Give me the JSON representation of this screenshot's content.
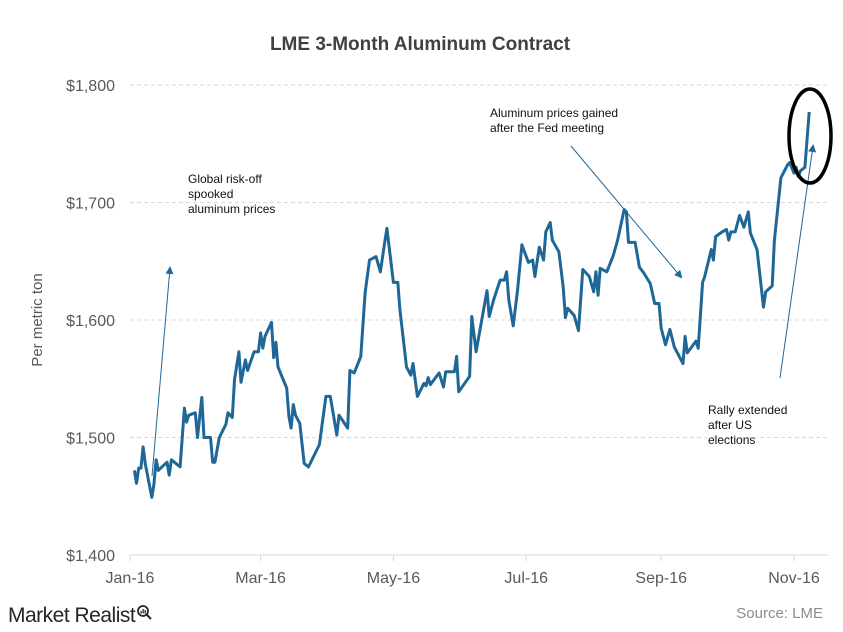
{
  "chart_data": {
    "type": "line",
    "title": "LME 3-Month Aluminum Contract",
    "ylabel": "Per metric ton",
    "xlabel": "",
    "ylim": [
      1400,
      1800
    ],
    "yticks": [
      1400,
      1500,
      1600,
      1700,
      1800
    ],
    "ytick_labels": [
      "$1,400",
      "$1,500",
      "$1,600",
      "$1,700",
      "$1,800"
    ],
    "xtick_dates": [
      "2016-01-01",
      "2016-03-01",
      "2016-05-01",
      "2016-07-01",
      "2016-09-01",
      "2016-11-01"
    ],
    "xtick_labels": [
      "Jan-16",
      "Mar-16",
      "May-16",
      "Jul-16",
      "Sep-16",
      "Nov-16"
    ],
    "grid": "horizontal dashed",
    "line_color": "#1f6796",
    "series": [
      {
        "points": [
          [
            "2016-01-03",
            1472
          ],
          [
            "2016-01-04",
            1461
          ],
          [
            "2016-01-05",
            1474
          ],
          [
            "2016-01-06",
            1474
          ],
          [
            "2016-01-07",
            1492
          ],
          [
            "2016-01-08",
            1478
          ],
          [
            "2016-01-11",
            1449
          ],
          [
            "2016-01-12",
            1460
          ],
          [
            "2016-01-13",
            1481
          ],
          [
            "2016-01-14",
            1472
          ],
          [
            "2016-01-18",
            1479
          ],
          [
            "2016-01-19",
            1468
          ],
          [
            "2016-01-20",
            1481
          ],
          [
            "2016-01-24",
            1475
          ],
          [
            "2016-01-26",
            1525
          ],
          [
            "2016-01-27",
            1513
          ],
          [
            "2016-01-28",
            1519
          ],
          [
            "2016-01-31",
            1521
          ],
          [
            "2016-02-01",
            1500
          ],
          [
            "2016-02-03",
            1534
          ],
          [
            "2016-02-04",
            1500
          ],
          [
            "2016-02-07",
            1500
          ],
          [
            "2016-02-08",
            1479
          ],
          [
            "2016-02-09",
            1479
          ],
          [
            "2016-02-11",
            1500
          ],
          [
            "2016-02-14",
            1511
          ],
          [
            "2016-02-15",
            1521
          ],
          [
            "2016-02-17",
            1517
          ],
          [
            "2016-02-18",
            1549
          ],
          [
            "2016-02-20",
            1573
          ],
          [
            "2016-02-21",
            1547
          ],
          [
            "2016-02-23",
            1566
          ],
          [
            "2016-02-24",
            1557
          ],
          [
            "2016-02-27",
            1573
          ],
          [
            "2016-02-29",
            1573
          ],
          [
            "2016-03-01",
            1589
          ],
          [
            "2016-03-02",
            1576
          ],
          [
            "2016-03-03",
            1586
          ],
          [
            "2016-03-06",
            1598
          ],
          [
            "2016-03-07",
            1568
          ],
          [
            "2016-03-08",
            1581
          ],
          [
            "2016-03-09",
            1560
          ],
          [
            "2016-03-13",
            1542
          ],
          [
            "2016-03-14",
            1518
          ],
          [
            "2016-03-15",
            1508
          ],
          [
            "2016-03-16",
            1528
          ],
          [
            "2016-03-17",
            1519
          ],
          [
            "2016-03-19",
            1512
          ],
          [
            "2016-03-21",
            1478
          ],
          [
            "2016-03-23",
            1475
          ],
          [
            "2016-03-28",
            1494
          ],
          [
            "2016-03-31",
            1535
          ],
          [
            "2016-04-02",
            1535
          ],
          [
            "2016-04-05",
            1502
          ],
          [
            "2016-04-06",
            1519
          ],
          [
            "2016-04-10",
            1508
          ],
          [
            "2016-04-11",
            1557
          ],
          [
            "2016-04-13",
            1555
          ],
          [
            "2016-04-16",
            1569
          ],
          [
            "2016-04-18",
            1623
          ],
          [
            "2016-04-20",
            1651
          ],
          [
            "2016-04-23",
            1654
          ],
          [
            "2016-04-25",
            1641
          ],
          [
            "2016-04-27",
            1666
          ],
          [
            "2016-04-28",
            1678
          ],
          [
            "2016-05-01",
            1632
          ],
          [
            "2016-05-03",
            1632
          ],
          [
            "2016-05-04",
            1609
          ],
          [
            "2016-05-07",
            1560
          ],
          [
            "2016-05-09",
            1553
          ],
          [
            "2016-05-10",
            1563
          ],
          [
            "2016-05-12",
            1535
          ],
          [
            "2016-05-15",
            1546
          ],
          [
            "2016-05-16",
            1544
          ],
          [
            "2016-05-17",
            1551
          ],
          [
            "2016-05-18",
            1545
          ],
          [
            "2016-05-22",
            1555
          ],
          [
            "2016-05-24",
            1543
          ],
          [
            "2016-05-25",
            1556
          ],
          [
            "2016-05-29",
            1556
          ],
          [
            "2016-05-30",
            1569
          ],
          [
            "2016-05-31",
            1539
          ],
          [
            "2016-06-05",
            1552
          ],
          [
            "2016-06-06",
            1603
          ],
          [
            "2016-06-08",
            1573
          ],
          [
            "2016-06-13",
            1625
          ],
          [
            "2016-06-14",
            1603
          ],
          [
            "2016-06-16",
            1617
          ],
          [
            "2016-06-19",
            1634
          ],
          [
            "2016-06-21",
            1634
          ],
          [
            "2016-06-22",
            1641
          ],
          [
            "2016-06-23",
            1617
          ],
          [
            "2016-06-25",
            1595
          ],
          [
            "2016-06-27",
            1625
          ],
          [
            "2016-06-29",
            1664
          ],
          [
            "2016-07-02",
            1649
          ],
          [
            "2016-07-04",
            1651
          ],
          [
            "2016-07-05",
            1637
          ],
          [
            "2016-07-07",
            1662
          ],
          [
            "2016-07-09",
            1651
          ],
          [
            "2016-07-10",
            1675
          ],
          [
            "2016-07-12",
            1683
          ],
          [
            "2016-07-13",
            1668
          ],
          [
            "2016-07-16",
            1658
          ],
          [
            "2016-07-18",
            1628
          ],
          [
            "2016-07-19",
            1602
          ],
          [
            "2016-07-20",
            1610
          ],
          [
            "2016-07-23",
            1604
          ],
          [
            "2016-07-25",
            1591
          ],
          [
            "2016-07-27",
            1643
          ],
          [
            "2016-07-30",
            1637
          ],
          [
            "2016-08-01",
            1624
          ],
          [
            "2016-08-02",
            1641
          ],
          [
            "2016-08-03",
            1621
          ],
          [
            "2016-08-04",
            1644
          ],
          [
            "2016-08-07",
            1641
          ],
          [
            "2016-08-10",
            1655
          ],
          [
            "2016-08-12",
            1668
          ],
          [
            "2016-08-15",
            1694
          ],
          [
            "2016-08-16",
            1692
          ],
          [
            "2016-08-17",
            1666
          ],
          [
            "2016-08-20",
            1666
          ],
          [
            "2016-08-22",
            1645
          ],
          [
            "2016-08-24",
            1640
          ],
          [
            "2016-08-27",
            1631
          ],
          [
            "2016-08-29",
            1614
          ],
          [
            "2016-08-31",
            1614
          ],
          [
            "2016-09-01",
            1593
          ],
          [
            "2016-09-03",
            1579
          ],
          [
            "2016-09-05",
            1592
          ],
          [
            "2016-09-07",
            1577
          ],
          [
            "2016-09-11",
            1563
          ],
          [
            "2016-09-12",
            1586
          ],
          [
            "2016-09-13",
            1572
          ],
          [
            "2016-09-17",
            1582
          ],
          [
            "2016-09-18",
            1576
          ],
          [
            "2016-09-20",
            1632
          ],
          [
            "2016-09-21",
            1637
          ],
          [
            "2016-09-24",
            1660
          ],
          [
            "2016-09-25",
            1651
          ],
          [
            "2016-09-26",
            1671
          ],
          [
            "2016-09-29",
            1675
          ],
          [
            "2016-10-01",
            1677
          ],
          [
            "2016-10-02",
            1668
          ],
          [
            "2016-10-03",
            1675
          ],
          [
            "2016-10-05",
            1675
          ],
          [
            "2016-10-07",
            1689
          ],
          [
            "2016-10-09",
            1679
          ],
          [
            "2016-10-11",
            1692
          ],
          [
            "2016-10-12",
            1674
          ],
          [
            "2016-10-15",
            1660
          ],
          [
            "2016-10-18",
            1611
          ],
          [
            "2016-10-19",
            1624
          ],
          [
            "2016-10-22",
            1629
          ],
          [
            "2016-10-23",
            1668
          ],
          [
            "2016-10-26",
            1721
          ],
          [
            "2016-10-29",
            1732
          ],
          [
            "2016-10-30",
            1734
          ],
          [
            "2016-11-01",
            1725
          ],
          [
            "2016-11-02",
            1730
          ],
          [
            "2016-11-03",
            1722
          ],
          [
            "2016-11-04",
            1727
          ],
          [
            "2016-11-06",
            1730
          ],
          [
            "2016-11-08",
            1777
          ]
        ]
      }
    ],
    "annotations": [
      {
        "lines": [
          "Global risk-off",
          "spooked",
          "aluminum prices"
        ]
      },
      {
        "lines": [
          "Aluminum prices gained",
          "after the Fed meeting"
        ]
      },
      {
        "lines": [
          "Rally extended",
          "after US",
          "elections"
        ]
      }
    ],
    "highlight": "circled final rally"
  },
  "footer": {
    "brand": "Market Realist",
    "source": "Source: LME"
  }
}
